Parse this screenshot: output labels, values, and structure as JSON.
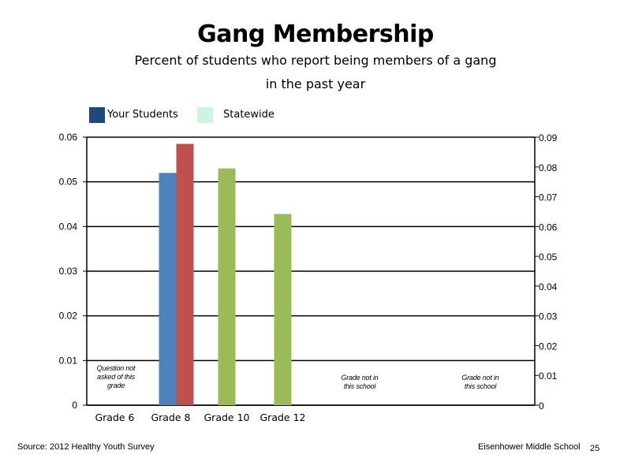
{
  "chart_data": {
    "type": "bar",
    "title": "Gang Membership",
    "subtitle_line1": "Percent of students who report being members of a gang",
    "subtitle_line2": "in the past year",
    "legend_placement": "top-left",
    "legend": [
      {
        "name": "Your Students",
        "color": "#1F497D"
      },
      {
        "name": "Statewide",
        "color": "#CCF5DD"
      }
    ],
    "categories": [
      "Grade 6",
      "Grade 8",
      "Grade 10",
      "Grade 12"
    ],
    "y_left": {
      "min": 0,
      "max": 0.06,
      "ticks": [
        "0",
        "0.01",
        "0.02",
        "0.03",
        "0.04",
        "0.05",
        "0.06"
      ]
    },
    "y_right": {
      "min": 0,
      "max": 0.09,
      "ticks": [
        "0",
        "0.01",
        "0.02",
        "0.03",
        "0.04",
        "0.05",
        "0.06",
        "0.07",
        "0.08",
        "0.09"
      ]
    },
    "grid": true,
    "bars": [
      {
        "category": "Grade 8",
        "axis": "left",
        "value": 0.052,
        "color": "#4F81BD"
      },
      {
        "category": "Grade 8",
        "axis": "left",
        "value": 0.0585,
        "color": "#C0504D"
      },
      {
        "category": "Grade 10",
        "axis": "left",
        "value": 0.053,
        "color": "#9BBB59"
      },
      {
        "category": "Grade 12",
        "axis": "left",
        "value": 0.0428,
        "color": "#9BBB59"
      }
    ],
    "annotations": [
      {
        "lines": [
          "Question not",
          "asked of this",
          "grade"
        ]
      },
      {
        "lines": [
          "Grade not in",
          "this school"
        ]
      },
      {
        "lines": [
          "Grade not in",
          "this school"
        ]
      }
    ]
  },
  "footer": {
    "source": "Source: 2012 Healthy Youth Survey",
    "school": "Eisenhower Middle  School",
    "page": "25"
  }
}
